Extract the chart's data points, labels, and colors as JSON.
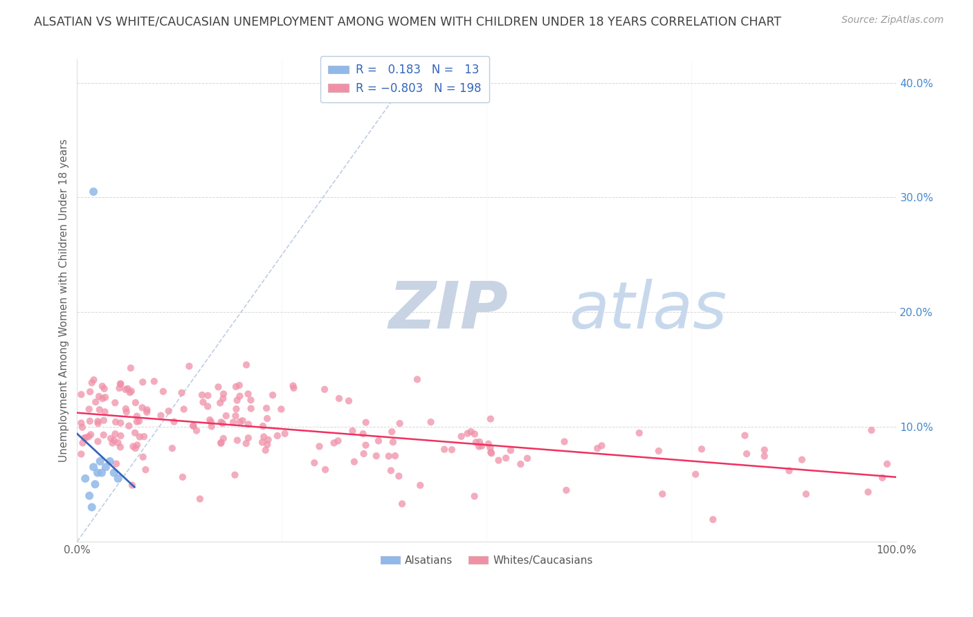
{
  "title": "ALSATIAN VS WHITE/CAUCASIAN UNEMPLOYMENT AMONG WOMEN WITH CHILDREN UNDER 18 YEARS CORRELATION CHART",
  "source": "Source: ZipAtlas.com",
  "ylabel": "Unemployment Among Women with Children Under 18 years",
  "xlim": [
    0,
    1.0
  ],
  "ylim": [
    0,
    0.42
  ],
  "alsatian_color": "#90b8e8",
  "caucasian_color": "#f090a8",
  "alsatian_line_color": "#3366bb",
  "caucasian_line_color": "#f03060",
  "ref_line_color": "#b8c8e0",
  "watermark_zip": "ZIP",
  "watermark_atlas": "atlas",
  "watermark_zip_color": "#c8d4e4",
  "watermark_atlas_color": "#c8d8ec",
  "background_color": "#ffffff",
  "grid_color": "#cccccc",
  "title_color": "#404040",
  "axis_label_color": "#606060",
  "right_tick_color": "#4488cc",
  "alsatian_R": 0.183,
  "alsatian_N": 13,
  "caucasian_R": -0.803,
  "caucasian_N": 198,
  "alsatian_points_x": [
    0.01,
    0.015,
    0.018,
    0.02,
    0.022,
    0.025,
    0.028,
    0.03,
    0.035,
    0.04,
    0.045,
    0.05,
    0.02
  ],
  "alsatian_points_y": [
    0.055,
    0.04,
    0.03,
    0.065,
    0.05,
    0.06,
    0.07,
    0.06,
    0.065,
    0.07,
    0.06,
    0.055,
    0.305
  ],
  "caucasian_seed": 12345
}
